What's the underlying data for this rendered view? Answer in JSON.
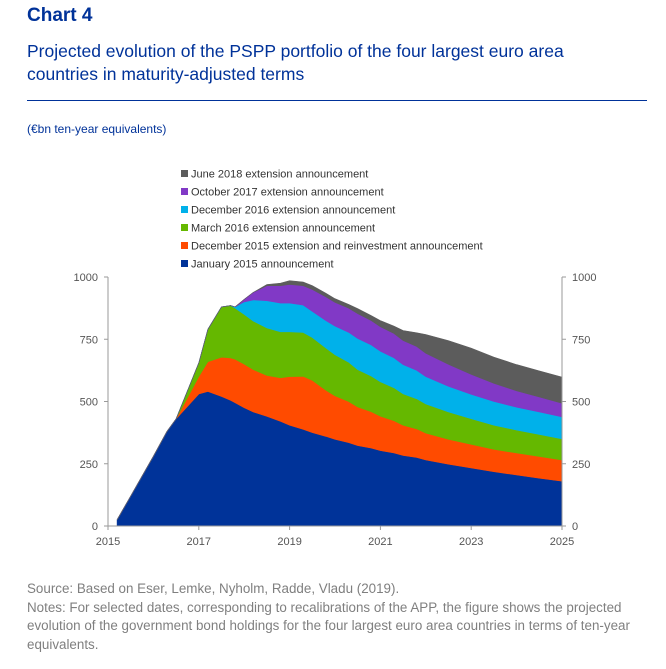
{
  "header": {
    "chart_label": "Chart 4",
    "title": "Projected evolution of the PSPP portfolio of the four largest euro area countries in maturity-adjusted terms",
    "unit": "(€bn ten-year equivalents)"
  },
  "footer": {
    "source": "Source: Based on Eser, Lemke, Nyholm, Radde, Vladu (2019).",
    "notes": "Notes: For selected dates, corresponding to recalibrations of the APP, the figure shows the projected evolution of the government bond holdings for the four largest euro area countries in terms of ten-year equivalents."
  },
  "chart_data": {
    "type": "area",
    "stacked": true,
    "x": [
      2015.2,
      2015.5,
      2016.0,
      2016.3,
      2016.5,
      2017.0,
      2017.2,
      2017.5,
      2017.7,
      2017.8,
      2018.0,
      2018.2,
      2018.5,
      2018.8,
      2019.0,
      2019.3,
      2019.5,
      2019.8,
      2020.0,
      2020.3,
      2020.5,
      2020.8,
      2021.0,
      2021.3,
      2021.5,
      2021.8,
      2022.0,
      2022.5,
      2023.0,
      2023.5,
      2024.0,
      2024.5,
      2025.0
    ],
    "series": [
      {
        "name": "January 2015 announcement",
        "color": "#003399",
        "values": [
          25,
          120,
          280,
          380,
          430,
          530,
          540,
          520,
          505,
          495,
          475,
          458,
          440,
          420,
          405,
          388,
          375,
          360,
          348,
          335,
          323,
          313,
          303,
          293,
          283,
          275,
          265,
          248,
          233,
          218,
          205,
          192,
          180
        ]
      },
      {
        "name": "December 2015 extension and reinvestment announcement",
        "color": "#ff4b00",
        "values": [
          0,
          0,
          0,
          0,
          0,
          70,
          120,
          158,
          170,
          175,
          175,
          170,
          165,
          175,
          195,
          213,
          210,
          185,
          175,
          165,
          155,
          146,
          138,
          130,
          122,
          115,
          108,
          100,
          95,
          90,
          88,
          87,
          85
        ]
      },
      {
        "name": "March 2016 extension announcement",
        "color": "#65b800",
        "values": [
          0,
          0,
          0,
          0,
          0,
          55,
          130,
          202,
          210,
          205,
          200,
          195,
          190,
          185,
          180,
          176,
          172,
          170,
          165,
          158,
          150,
          143,
          138,
          132,
          126,
          121,
          117,
          110,
          103,
          97,
          92,
          89,
          85
        ]
      },
      {
        "name": "December 2016 extension announcement",
        "color": "#00b1ea",
        "values": [
          0,
          0,
          0,
          0,
          0,
          0,
          0,
          0,
          0,
          5,
          50,
          85,
          110,
          115,
          115,
          110,
          105,
          110,
          115,
          120,
          125,
          125,
          123,
          120,
          117,
          114,
          110,
          103,
          98,
          95,
          92,
          90,
          88
        ]
      },
      {
        "name": "October 2017 extension announcement",
        "color": "#8139c6",
        "values": [
          0,
          0,
          0,
          0,
          0,
          0,
          0,
          0,
          0,
          0,
          10,
          30,
          60,
          70,
          75,
          78,
          88,
          95,
          95,
          97,
          100,
          98,
          98,
          98,
          97,
          96,
          94,
          88,
          80,
          73,
          66,
          60,
          55
        ]
      },
      {
        "name": "June 2018 extension announcement",
        "color": "#5c5c5c",
        "values": [
          0,
          0,
          0,
          0,
          0,
          0,
          0,
          0,
          0,
          0,
          0,
          0,
          5,
          10,
          15,
          15,
          15,
          15,
          15,
          15,
          20,
          20,
          25,
          30,
          40,
          55,
          75,
          95,
          105,
          105,
          105,
          105,
          105
        ]
      }
    ],
    "xlim": [
      2015,
      2025
    ],
    "xticks": [
      "2015",
      "2017",
      "2019",
      "2021",
      "2023",
      "2025"
    ],
    "ylim": [
      0,
      1000
    ],
    "yticks": [
      "0",
      "250",
      "500",
      "750",
      "1000"
    ],
    "legend_position": "top-left",
    "grid": false
  }
}
